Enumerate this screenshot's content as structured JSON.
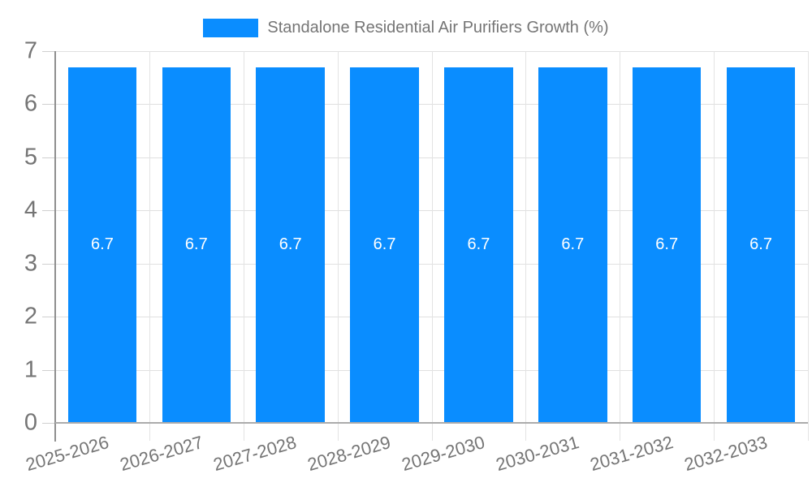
{
  "legend": {
    "label": "Standalone Residential Air Purifiers Growth (%)"
  },
  "chart_data": {
    "type": "bar",
    "title": "Standalone Residential Air Purifiers Growth (%)",
    "categories": [
      "2025-2026",
      "2026-2027",
      "2027-2028",
      "2028-2029",
      "2029-2030",
      "2030-2031",
      "2031-2032",
      "2032-2033"
    ],
    "series": [
      {
        "name": "Standalone Residential Air Purifiers Growth (%)",
        "values": [
          6.7,
          6.7,
          6.7,
          6.7,
          6.7,
          6.7,
          6.7,
          6.7
        ]
      }
    ],
    "bar_labels": [
      "6.7",
      "6.7",
      "6.7",
      "6.7",
      "6.7",
      "6.7",
      "6.7",
      "6.7"
    ],
    "xlabel": "",
    "ylabel": "",
    "ylim": [
      0,
      7
    ],
    "yticks": [
      0,
      1,
      2,
      3,
      4,
      5,
      6,
      7
    ],
    "grid": true,
    "legend_position": "top",
    "colors": {
      "bar": "#0a8dff",
      "bar_label": "#ffffff",
      "axis_text": "#757575",
      "grid_line": "#e0e0e0",
      "axis_line": "#8f8f8f",
      "baseline": "#ababab"
    }
  }
}
